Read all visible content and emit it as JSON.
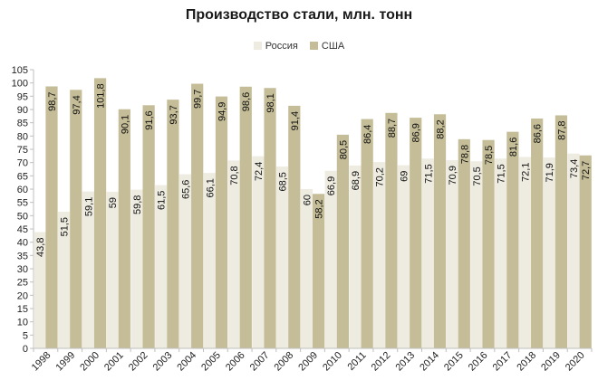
{
  "chart_data": {
    "type": "bar",
    "title": "Производство стали, млн. тонн",
    "xlabel": "",
    "ylabel": "",
    "categories": [
      "1998",
      "1999",
      "2000",
      "2001",
      "2002",
      "2003",
      "2004",
      "2005",
      "2006",
      "2007",
      "2008",
      "2009",
      "2010",
      "2011",
      "2012",
      "2013",
      "2014",
      "2015",
      "2016",
      "2017",
      "2018",
      "2019",
      "2020"
    ],
    "series": [
      {
        "name": "Россия",
        "color": "#eeece1",
        "values": [
          43.8,
          51.5,
          59.1,
          59,
          59.8,
          61.5,
          65.6,
          66.1,
          70.8,
          72.4,
          68.5,
          60,
          66.9,
          68.9,
          70.2,
          69,
          71.5,
          70.9,
          70.5,
          71.5,
          72.1,
          71.9,
          73.4
        ],
        "labels": [
          "43,8",
          "51,5",
          "59,1",
          "59",
          "59,8",
          "61,5",
          "65,6",
          "66,1",
          "70,8",
          "72,4",
          "68,5",
          "60",
          "66,9",
          "68,9",
          "70,2",
          "69",
          "71,5",
          "70,9",
          "70,5",
          "71,5",
          "72,1",
          "71,9",
          "73,4"
        ]
      },
      {
        "name": "США",
        "color": "#c4bd97",
        "values": [
          98.7,
          97.4,
          101.8,
          90.1,
          91.6,
          93.7,
          99.7,
          94.9,
          98.6,
          98.1,
          91.4,
          58.2,
          80.5,
          86.4,
          88.7,
          86.9,
          88.2,
          78.8,
          78.5,
          81.6,
          86.6,
          87.8,
          72.7
        ],
        "labels": [
          "98,7",
          "97,4",
          "101,8",
          "90,1",
          "91,6",
          "93,7",
          "99,7",
          "94,9",
          "98,6",
          "98,1",
          "91,4",
          "58,2",
          "80,5",
          "86,4",
          "88,7",
          "86,9",
          "88,2",
          "78,8",
          "78,5",
          "81,6",
          "86,6",
          "87,8",
          "72,7"
        ]
      }
    ],
    "ylim": [
      0,
      105
    ],
    "yticks": [
      0,
      5,
      10,
      15,
      20,
      25,
      30,
      35,
      40,
      45,
      50,
      55,
      60,
      65,
      70,
      75,
      80,
      85,
      90,
      95,
      100,
      105
    ],
    "grid": false,
    "legend_position": "top-center",
    "axis_color": "#bfbfbf"
  }
}
